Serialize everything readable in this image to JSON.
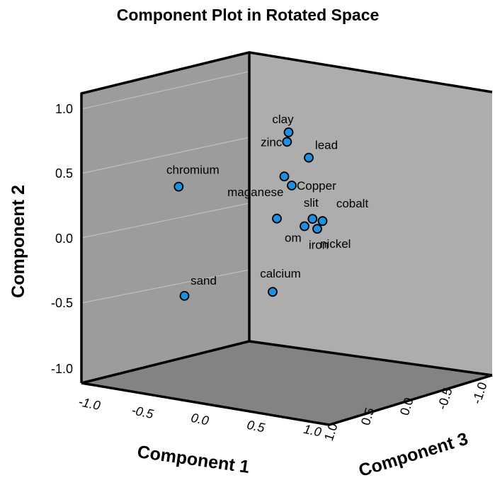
{
  "chart_data": {
    "type": "scatter",
    "title": "Component Plot in Rotated Space",
    "xlabel": "Component 1",
    "ylabel": "Component 2",
    "zlabel": "Component 3",
    "grid": true,
    "ticks": {
      "y": [
        "1.0",
        "0.5",
        "0.0",
        "-0.5",
        "-1.0"
      ],
      "x": [
        "-1.0",
        "-0.5",
        "0.0",
        "0.5",
        "1.0"
      ],
      "z": [
        "1.0",
        "0.5",
        "0.0",
        "-0.5",
        "-1.0"
      ]
    },
    "points": [
      {
        "label": "clay",
        "c1": 0.42,
        "c2": 0.82,
        "c3": -0.3
      },
      {
        "label": "zinc",
        "c1": 0.4,
        "c2": 0.75,
        "c3": -0.25
      },
      {
        "label": "lead",
        "c1": 0.6,
        "c2": 0.63,
        "c3": -0.2
      },
      {
        "label": "chromium",
        "c1": -0.65,
        "c2": 0.42,
        "c3": 0.05
      },
      {
        "label": "maganese",
        "c1": 0.38,
        "c2": 0.48,
        "c3": -0.3
      },
      {
        "label": "Copper",
        "c1": 0.45,
        "c2": 0.41,
        "c3": -0.3
      },
      {
        "label": "slit",
        "c1": 0.65,
        "c2": 0.15,
        "c3": -0.35
      },
      {
        "label": "cobalt",
        "c1": 0.75,
        "c2": 0.13,
        "c3": -0.4
      },
      {
        "label": "om",
        "c1": 0.3,
        "c2": 0.16,
        "c3": -0.2
      },
      {
        "label": "iron",
        "c1": 0.58,
        "c2": 0.09,
        "c3": -0.4
      },
      {
        "label": "nickel",
        "c1": 0.7,
        "c2": 0.07,
        "c3": -0.4
      },
      {
        "label": "calcium",
        "c1": 0.25,
        "c2": -0.4,
        "c3": -0.1
      },
      {
        "label": "sand",
        "c1": -0.6,
        "c2": -0.42,
        "c3": 0.1
      }
    ],
    "point_color": "#1f8fe0",
    "point_outline": "#000000"
  }
}
